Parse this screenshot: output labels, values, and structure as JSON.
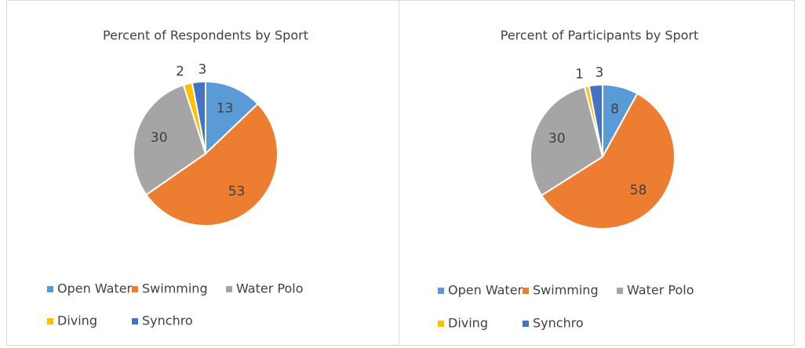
{
  "chart_data": [
    {
      "type": "pie",
      "title": "Percent of Respondents by Sport",
      "categories": [
        "Open Water",
        "Swimming",
        "Water Polo",
        "Diving",
        "Synchro"
      ],
      "values": [
        13,
        53,
        30,
        2,
        3
      ],
      "colors": [
        "#5b9bd5",
        "#ed7d31",
        "#a5a5a5",
        "#ffc000",
        "#4472c4"
      ],
      "legend": "bottom"
    },
    {
      "type": "pie",
      "title": "Percent of Participants by Sport",
      "categories": [
        "Open Water",
        "Swimming",
        "Water Polo",
        "Diving",
        "Synchro"
      ],
      "values": [
        8,
        58,
        30,
        1,
        3
      ],
      "colors": [
        "#5b9bd5",
        "#ed7d31",
        "#a5a5a5",
        "#ffc000",
        "#4472c4"
      ],
      "legend": "bottom"
    }
  ]
}
